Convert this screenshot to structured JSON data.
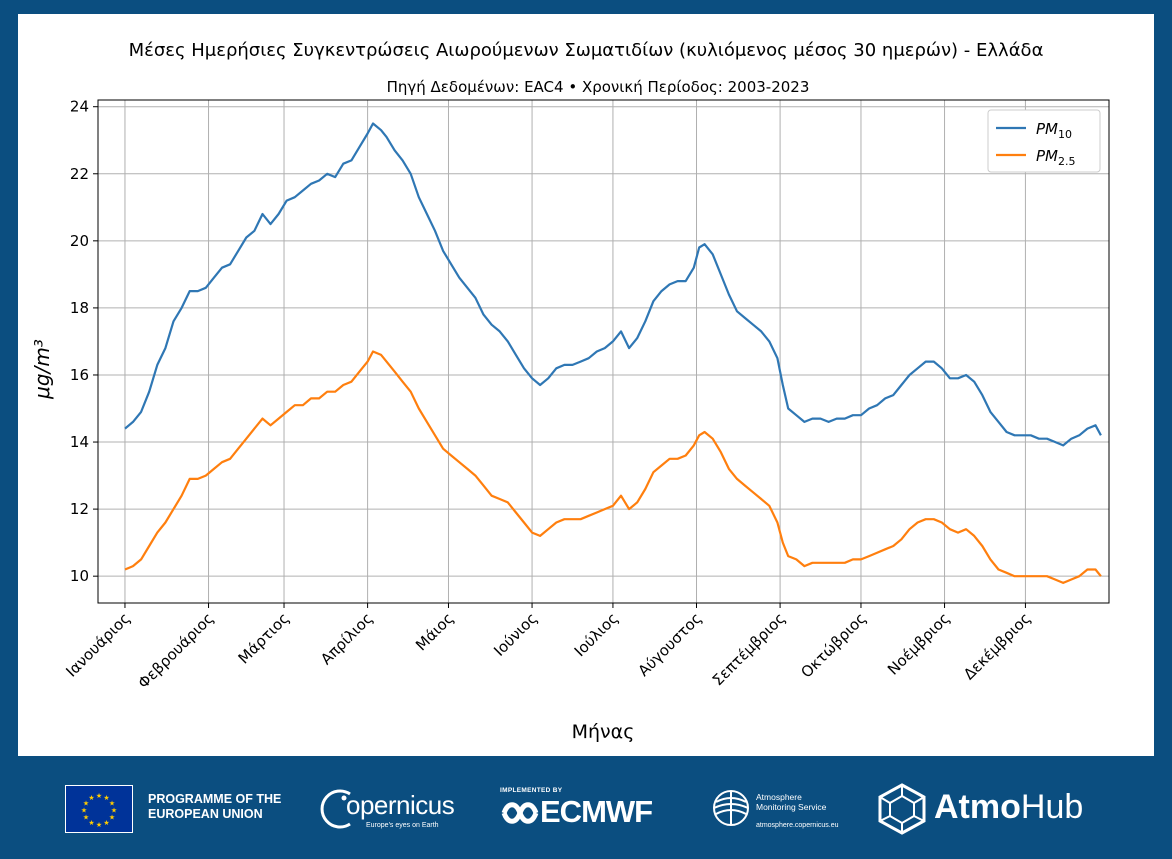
{
  "chart_data": {
    "type": "line",
    "title": "Μέσες Ημερήσιες Συγκεντρώσεις Αιωρούμενων Σωματιδίων (κυλιόμενος μέσος 30 ημερών) - Ελλάδα",
    "subtitle": "Πηγή Δεδομένων: EAC4 • Χρονική Περίοδος: 2003-2023",
    "xlabel": "Μήνας",
    "ylabel": "μg/m³",
    "ylim": [
      9.2,
      24.2
    ],
    "xlim": [
      -10,
      365
    ],
    "yticks": [
      10,
      12,
      14,
      16,
      18,
      20,
      22,
      24
    ],
    "grid": true,
    "legend_position": "top-right",
    "xticks": [
      {
        "day": 0,
        "label": "Ιανουάριος"
      },
      {
        "day": 31,
        "label": "Φεβρουάριος"
      },
      {
        "day": 59,
        "label": "Μάρτιος"
      },
      {
        "day": 90,
        "label": "Απρίλιος"
      },
      {
        "day": 120,
        "label": "Μάιος"
      },
      {
        "day": 151,
        "label": "Ιούνιος"
      },
      {
        "day": 181,
        "label": "Ιούλιος"
      },
      {
        "day": 212,
        "label": "Αύγουστος"
      },
      {
        "day": 243,
        "label": "Σεπτέμβριος"
      },
      {
        "day": 273,
        "label": "Οκτώβριος"
      },
      {
        "day": 304,
        "label": "Νοέμβριος"
      },
      {
        "day": 334,
        "label": "Δεκέμβριος"
      }
    ],
    "series": [
      {
        "name": "PM10",
        "label_main": "PM",
        "label_sub": "10",
        "color": "#2f77b4",
        "points": [
          [
            0,
            14.4
          ],
          [
            3,
            14.6
          ],
          [
            6,
            14.9
          ],
          [
            9,
            15.5
          ],
          [
            12,
            16.3
          ],
          [
            15,
            16.8
          ],
          [
            18,
            17.6
          ],
          [
            21,
            18.0
          ],
          [
            24,
            18.5
          ],
          [
            27,
            18.5
          ],
          [
            30,
            18.6
          ],
          [
            33,
            18.9
          ],
          [
            36,
            19.2
          ],
          [
            39,
            19.3
          ],
          [
            42,
            19.7
          ],
          [
            45,
            20.1
          ],
          [
            48,
            20.3
          ],
          [
            51,
            20.8
          ],
          [
            54,
            20.5
          ],
          [
            57,
            20.8
          ],
          [
            60,
            21.2
          ],
          [
            63,
            21.3
          ],
          [
            66,
            21.5
          ],
          [
            69,
            21.7
          ],
          [
            72,
            21.8
          ],
          [
            75,
            22.0
          ],
          [
            78,
            21.9
          ],
          [
            81,
            22.3
          ],
          [
            84,
            22.4
          ],
          [
            87,
            22.8
          ],
          [
            90,
            23.2
          ],
          [
            92,
            23.5
          ],
          [
            95,
            23.3
          ],
          [
            97,
            23.1
          ],
          [
            100,
            22.7
          ],
          [
            103,
            22.4
          ],
          [
            106,
            22.0
          ],
          [
            109,
            21.3
          ],
          [
            112,
            20.8
          ],
          [
            115,
            20.3
          ],
          [
            118,
            19.7
          ],
          [
            121,
            19.3
          ],
          [
            124,
            18.9
          ],
          [
            127,
            18.6
          ],
          [
            130,
            18.3
          ],
          [
            133,
            17.8
          ],
          [
            136,
            17.5
          ],
          [
            139,
            17.3
          ],
          [
            142,
            17.0
          ],
          [
            145,
            16.6
          ],
          [
            148,
            16.2
          ],
          [
            151,
            15.9
          ],
          [
            154,
            15.7
          ],
          [
            157,
            15.9
          ],
          [
            160,
            16.2
          ],
          [
            163,
            16.3
          ],
          [
            166,
            16.3
          ],
          [
            169,
            16.4
          ],
          [
            172,
            16.5
          ],
          [
            175,
            16.7
          ],
          [
            178,
            16.8
          ],
          [
            181,
            17.0
          ],
          [
            184,
            17.3
          ],
          [
            187,
            16.8
          ],
          [
            190,
            17.1
          ],
          [
            193,
            17.6
          ],
          [
            196,
            18.2
          ],
          [
            199,
            18.5
          ],
          [
            202,
            18.7
          ],
          [
            205,
            18.8
          ],
          [
            208,
            18.8
          ],
          [
            211,
            19.2
          ],
          [
            213,
            19.8
          ],
          [
            215,
            19.9
          ],
          [
            218,
            19.6
          ],
          [
            221,
            19.0
          ],
          [
            224,
            18.4
          ],
          [
            227,
            17.9
          ],
          [
            230,
            17.7
          ],
          [
            233,
            17.5
          ],
          [
            236,
            17.3
          ],
          [
            239,
            17.0
          ],
          [
            242,
            16.5
          ],
          [
            244,
            15.7
          ],
          [
            246,
            15.0
          ],
          [
            249,
            14.8
          ],
          [
            252,
            14.6
          ],
          [
            255,
            14.7
          ],
          [
            258,
            14.7
          ],
          [
            261,
            14.6
          ],
          [
            264,
            14.7
          ],
          [
            267,
            14.7
          ],
          [
            270,
            14.8
          ],
          [
            273,
            14.8
          ],
          [
            276,
            15.0
          ],
          [
            279,
            15.1
          ],
          [
            282,
            15.3
          ],
          [
            285,
            15.4
          ],
          [
            288,
            15.7
          ],
          [
            291,
            16.0
          ],
          [
            294,
            16.2
          ],
          [
            297,
            16.4
          ],
          [
            300,
            16.4
          ],
          [
            303,
            16.2
          ],
          [
            306,
            15.9
          ],
          [
            309,
            15.9
          ],
          [
            312,
            16.0
          ],
          [
            315,
            15.8
          ],
          [
            318,
            15.4
          ],
          [
            321,
            14.9
          ],
          [
            324,
            14.6
          ],
          [
            327,
            14.3
          ],
          [
            330,
            14.2
          ],
          [
            333,
            14.2
          ],
          [
            336,
            14.2
          ],
          [
            339,
            14.1
          ],
          [
            342,
            14.1
          ],
          [
            345,
            14.0
          ],
          [
            348,
            13.9
          ],
          [
            351,
            14.1
          ],
          [
            354,
            14.2
          ],
          [
            357,
            14.4
          ],
          [
            360,
            14.5
          ],
          [
            362,
            14.2
          ]
        ]
      },
      {
        "name": "PM2.5",
        "label_main": "PM",
        "label_sub": "2.5",
        "color": "#ff7f0e",
        "points": [
          [
            0,
            10.2
          ],
          [
            3,
            10.3
          ],
          [
            6,
            10.5
          ],
          [
            9,
            10.9
          ],
          [
            12,
            11.3
          ],
          [
            15,
            11.6
          ],
          [
            18,
            12.0
          ],
          [
            21,
            12.4
          ],
          [
            24,
            12.9
          ],
          [
            27,
            12.9
          ],
          [
            30,
            13.0
          ],
          [
            33,
            13.2
          ],
          [
            36,
            13.4
          ],
          [
            39,
            13.5
          ],
          [
            42,
            13.8
          ],
          [
            45,
            14.1
          ],
          [
            48,
            14.4
          ],
          [
            51,
            14.7
          ],
          [
            54,
            14.5
          ],
          [
            57,
            14.7
          ],
          [
            60,
            14.9
          ],
          [
            63,
            15.1
          ],
          [
            66,
            15.1
          ],
          [
            69,
            15.3
          ],
          [
            72,
            15.3
          ],
          [
            75,
            15.5
          ],
          [
            78,
            15.5
          ],
          [
            81,
            15.7
          ],
          [
            84,
            15.8
          ],
          [
            87,
            16.1
          ],
          [
            90,
            16.4
          ],
          [
            92,
            16.7
          ],
          [
            95,
            16.6
          ],
          [
            97,
            16.4
          ],
          [
            100,
            16.1
          ],
          [
            103,
            15.8
          ],
          [
            106,
            15.5
          ],
          [
            109,
            15.0
          ],
          [
            112,
            14.6
          ],
          [
            115,
            14.2
          ],
          [
            118,
            13.8
          ],
          [
            121,
            13.6
          ],
          [
            124,
            13.4
          ],
          [
            127,
            13.2
          ],
          [
            130,
            13.0
          ],
          [
            133,
            12.7
          ],
          [
            136,
            12.4
          ],
          [
            139,
            12.3
          ],
          [
            142,
            12.2
          ],
          [
            145,
            11.9
          ],
          [
            148,
            11.6
          ],
          [
            151,
            11.3
          ],
          [
            154,
            11.2
          ],
          [
            157,
            11.4
          ],
          [
            160,
            11.6
          ],
          [
            163,
            11.7
          ],
          [
            166,
            11.7
          ],
          [
            169,
            11.7
          ],
          [
            172,
            11.8
          ],
          [
            175,
            11.9
          ],
          [
            178,
            12.0
          ],
          [
            181,
            12.1
          ],
          [
            184,
            12.4
          ],
          [
            187,
            12.0
          ],
          [
            190,
            12.2
          ],
          [
            193,
            12.6
          ],
          [
            196,
            13.1
          ],
          [
            199,
            13.3
          ],
          [
            202,
            13.5
          ],
          [
            205,
            13.5
          ],
          [
            208,
            13.6
          ],
          [
            211,
            13.9
          ],
          [
            213,
            14.2
          ],
          [
            215,
            14.3
          ],
          [
            218,
            14.1
          ],
          [
            221,
            13.7
          ],
          [
            224,
            13.2
          ],
          [
            227,
            12.9
          ],
          [
            230,
            12.7
          ],
          [
            233,
            12.5
          ],
          [
            236,
            12.3
          ],
          [
            239,
            12.1
          ],
          [
            242,
            11.6
          ],
          [
            244,
            11.0
          ],
          [
            246,
            10.6
          ],
          [
            249,
            10.5
          ],
          [
            252,
            10.3
          ],
          [
            255,
            10.4
          ],
          [
            258,
            10.4
          ],
          [
            261,
            10.4
          ],
          [
            264,
            10.4
          ],
          [
            267,
            10.4
          ],
          [
            270,
            10.5
          ],
          [
            273,
            10.5
          ],
          [
            276,
            10.6
          ],
          [
            279,
            10.7
          ],
          [
            282,
            10.8
          ],
          [
            285,
            10.9
          ],
          [
            288,
            11.1
          ],
          [
            291,
            11.4
          ],
          [
            294,
            11.6
          ],
          [
            297,
            11.7
          ],
          [
            300,
            11.7
          ],
          [
            303,
            11.6
          ],
          [
            306,
            11.4
          ],
          [
            309,
            11.3
          ],
          [
            312,
            11.4
          ],
          [
            315,
            11.2
          ],
          [
            318,
            10.9
          ],
          [
            321,
            10.5
          ],
          [
            324,
            10.2
          ],
          [
            327,
            10.1
          ],
          [
            330,
            10.0
          ],
          [
            333,
            10.0
          ],
          [
            336,
            10.0
          ],
          [
            339,
            10.0
          ],
          [
            342,
            10.0
          ],
          [
            345,
            9.9
          ],
          [
            348,
            9.8
          ],
          [
            351,
            9.9
          ],
          [
            354,
            10.0
          ],
          [
            357,
            10.2
          ],
          [
            360,
            10.2
          ],
          [
            362,
            10.0
          ]
        ]
      }
    ]
  },
  "footer": {
    "eu_line1": "PROGRAMME OF THE",
    "eu_line2": "EUROPEAN UNION",
    "copernicus_name": "opernicus",
    "copernicus_tagline": "Europe's eyes on Earth",
    "ecmwf_implemented": "IMPLEMENTED BY",
    "ecmwf_name": "ECMWF",
    "cams_line1": "Atmosphere",
    "cams_line2": "Monitoring Service",
    "cams_url": "atmosphere.copernicus.eu",
    "atmohub_bold": "Atmo",
    "atmohub_rest": "Hub"
  }
}
